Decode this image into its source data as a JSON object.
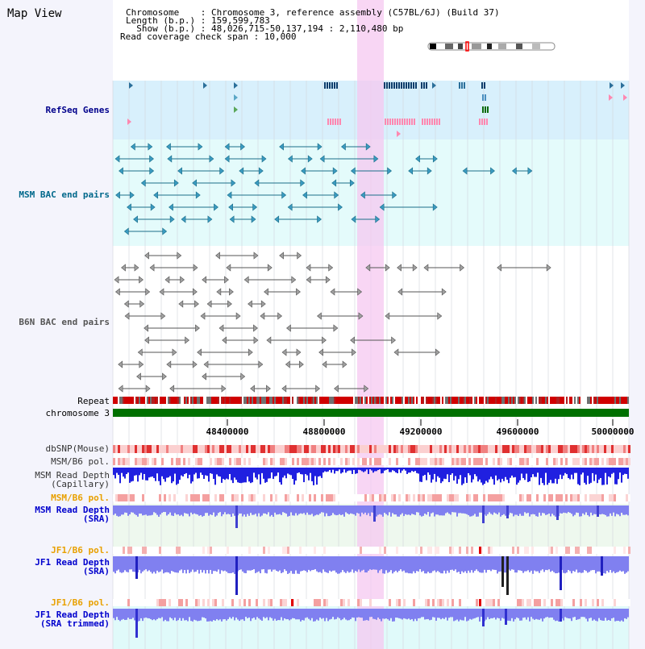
{
  "page": {
    "title": "Map View"
  },
  "info": {
    "chromosome": "Chromosome    : Chromosome 3, reference assembly (C57BL/6J) (Build 37)",
    "length": "Length (b.p.) : 159,599,783",
    "show": "  Show (b.p.) : 48,026,715-50,137,194 : 2,110,480 bp",
    "coverage": "Read coverage check span : 10,000"
  },
  "tracks": {
    "refseq": "RefSeq Genes",
    "msm_bac": "MSM BAC end pairs",
    "b6n_bac": "B6N BAC end pairs",
    "repeat": "Repeat",
    "chromosome": "chromosome 3",
    "dbsnp": "dbSNP(Mouse)",
    "msm_b6_pol_1": "MSM/B6 pol.",
    "msm_depth_cap": "MSM Read Depth\n(Capillary)",
    "msm_b6_pol_2": "MSM/B6 pol.",
    "msm_depth_sra": "MSM Read Depth\n(SRA)",
    "jf1_b6_pol_1": "JF1/B6 pol.",
    "jf1_depth_sra": "JF1 Read Depth\n(SRA)",
    "jf1_b6_pol_2": "JF1/B6 pol.",
    "jf1_depth_trim": "JF1 Read Depth\n(SRA trimmed)"
  },
  "axis": {
    "ticks": [
      "48400000",
      "48800000",
      "49200000",
      "49600000",
      "50000000"
    ]
  },
  "colors": {
    "refseq_label": "#00008b",
    "msm_label": "#00688b",
    "b6n_label": "#555555",
    "pol_orange": "#e8a000",
    "depth_blue": "#0000cd",
    "highlight": "#f5c8f0"
  }
}
